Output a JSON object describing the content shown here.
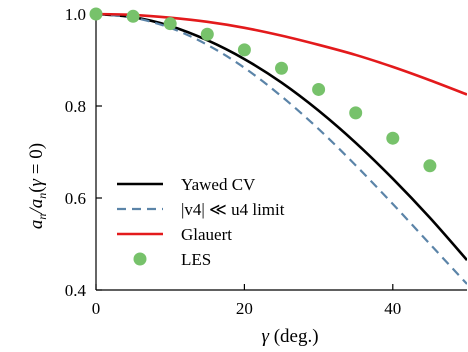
{
  "chart_data": {
    "type": "line",
    "xlabel": "γ (deg.)",
    "ylabel": "a_n/a_n(γ = 0)",
    "xlim": [
      0,
      50
    ],
    "ylim": [
      0.4,
      1.0
    ],
    "x_ticks": [
      0,
      20,
      40
    ],
    "x_tick_labels": [
      "0",
      "20",
      "40"
    ],
    "y_ticks": [
      0.4,
      0.6,
      0.8,
      1.0
    ],
    "y_tick_labels": [
      "0.4",
      "0.6",
      "0.8",
      "1.0"
    ],
    "grid": false,
    "legend_position": "lower-left",
    "series": [
      {
        "name": "Yawed CV",
        "kind": "line",
        "style": "solid",
        "color": "#000000",
        "x": [
          0,
          5,
          10,
          15,
          20,
          25,
          30,
          35,
          40,
          45,
          50
        ],
        "y": [
          1.0,
          0.993,
          0.974,
          0.943,
          0.902,
          0.851,
          0.79,
          0.72,
          0.642,
          0.557,
          0.465
        ]
      },
      {
        "name": "|v4| ≪ u4 limit",
        "kind": "line",
        "style": "dashed",
        "color": "#5b84a8",
        "x": [
          0,
          5,
          10,
          15,
          20,
          25,
          30,
          35,
          40,
          45,
          50
        ],
        "y": [
          1.0,
          0.992,
          0.97,
          0.933,
          0.883,
          0.821,
          0.75,
          0.671,
          0.587,
          0.5,
          0.413
        ]
      },
      {
        "name": "Glauert",
        "kind": "line",
        "style": "solid",
        "color": "#e31a1c",
        "x": [
          0,
          5,
          10,
          15,
          20,
          25,
          30,
          35,
          40,
          45,
          50
        ],
        "y": [
          1.0,
          0.998,
          0.992,
          0.983,
          0.97,
          0.953,
          0.933,
          0.911,
          0.885,
          0.856,
          0.825
        ]
      },
      {
        "name": "LES",
        "kind": "scatter",
        "color": "#77c26b",
        "x": [
          0,
          5,
          10,
          15,
          20,
          25,
          30,
          35,
          40,
          45
        ],
        "y": [
          1.0,
          0.995,
          0.979,
          0.956,
          0.922,
          0.882,
          0.836,
          0.785,
          0.73,
          0.67
        ]
      }
    ]
  }
}
